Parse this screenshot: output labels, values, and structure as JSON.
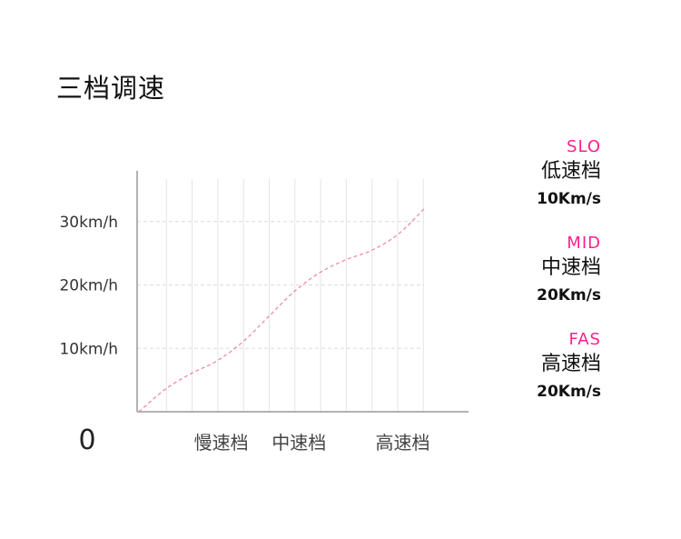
{
  "title": "三档调速",
  "chart_data": {
    "type": "line",
    "origin_label": "0",
    "y_ticks": [
      {
        "value": 10,
        "label": "10km/h"
      },
      {
        "value": 20,
        "label": "20km/h"
      },
      {
        "value": 30,
        "label": "30km/h"
      }
    ],
    "ylim": [
      0,
      38
    ],
    "xlim": [
      0,
      11
    ],
    "x_categories": [
      {
        "position": 3,
        "label": "慢速档"
      },
      {
        "position": 6,
        "label": "中速档"
      },
      {
        "position": 10,
        "label": "高速档"
      }
    ],
    "series": [
      {
        "x": [
          0,
          1,
          2,
          3,
          4,
          5,
          6,
          7,
          8,
          9,
          10,
          11
        ],
        "y": [
          0,
          3.5,
          6,
          8,
          11,
          15,
          19,
          22,
          24,
          25.5,
          28,
          32
        ]
      }
    ],
    "grid": true
  },
  "legend": [
    {
      "code": "SLO",
      "name": "低速档",
      "speed": "10Km/s"
    },
    {
      "code": "MID",
      "name": "中速档",
      "speed": "20Km/s"
    },
    {
      "code": "FAS",
      "name": "高速档",
      "speed": "20Km/s"
    }
  ],
  "colors": {
    "accent": "#ff1f8e",
    "curve": "#f28aa0",
    "axis": "#999999",
    "grid": "#e4e4e4"
  }
}
